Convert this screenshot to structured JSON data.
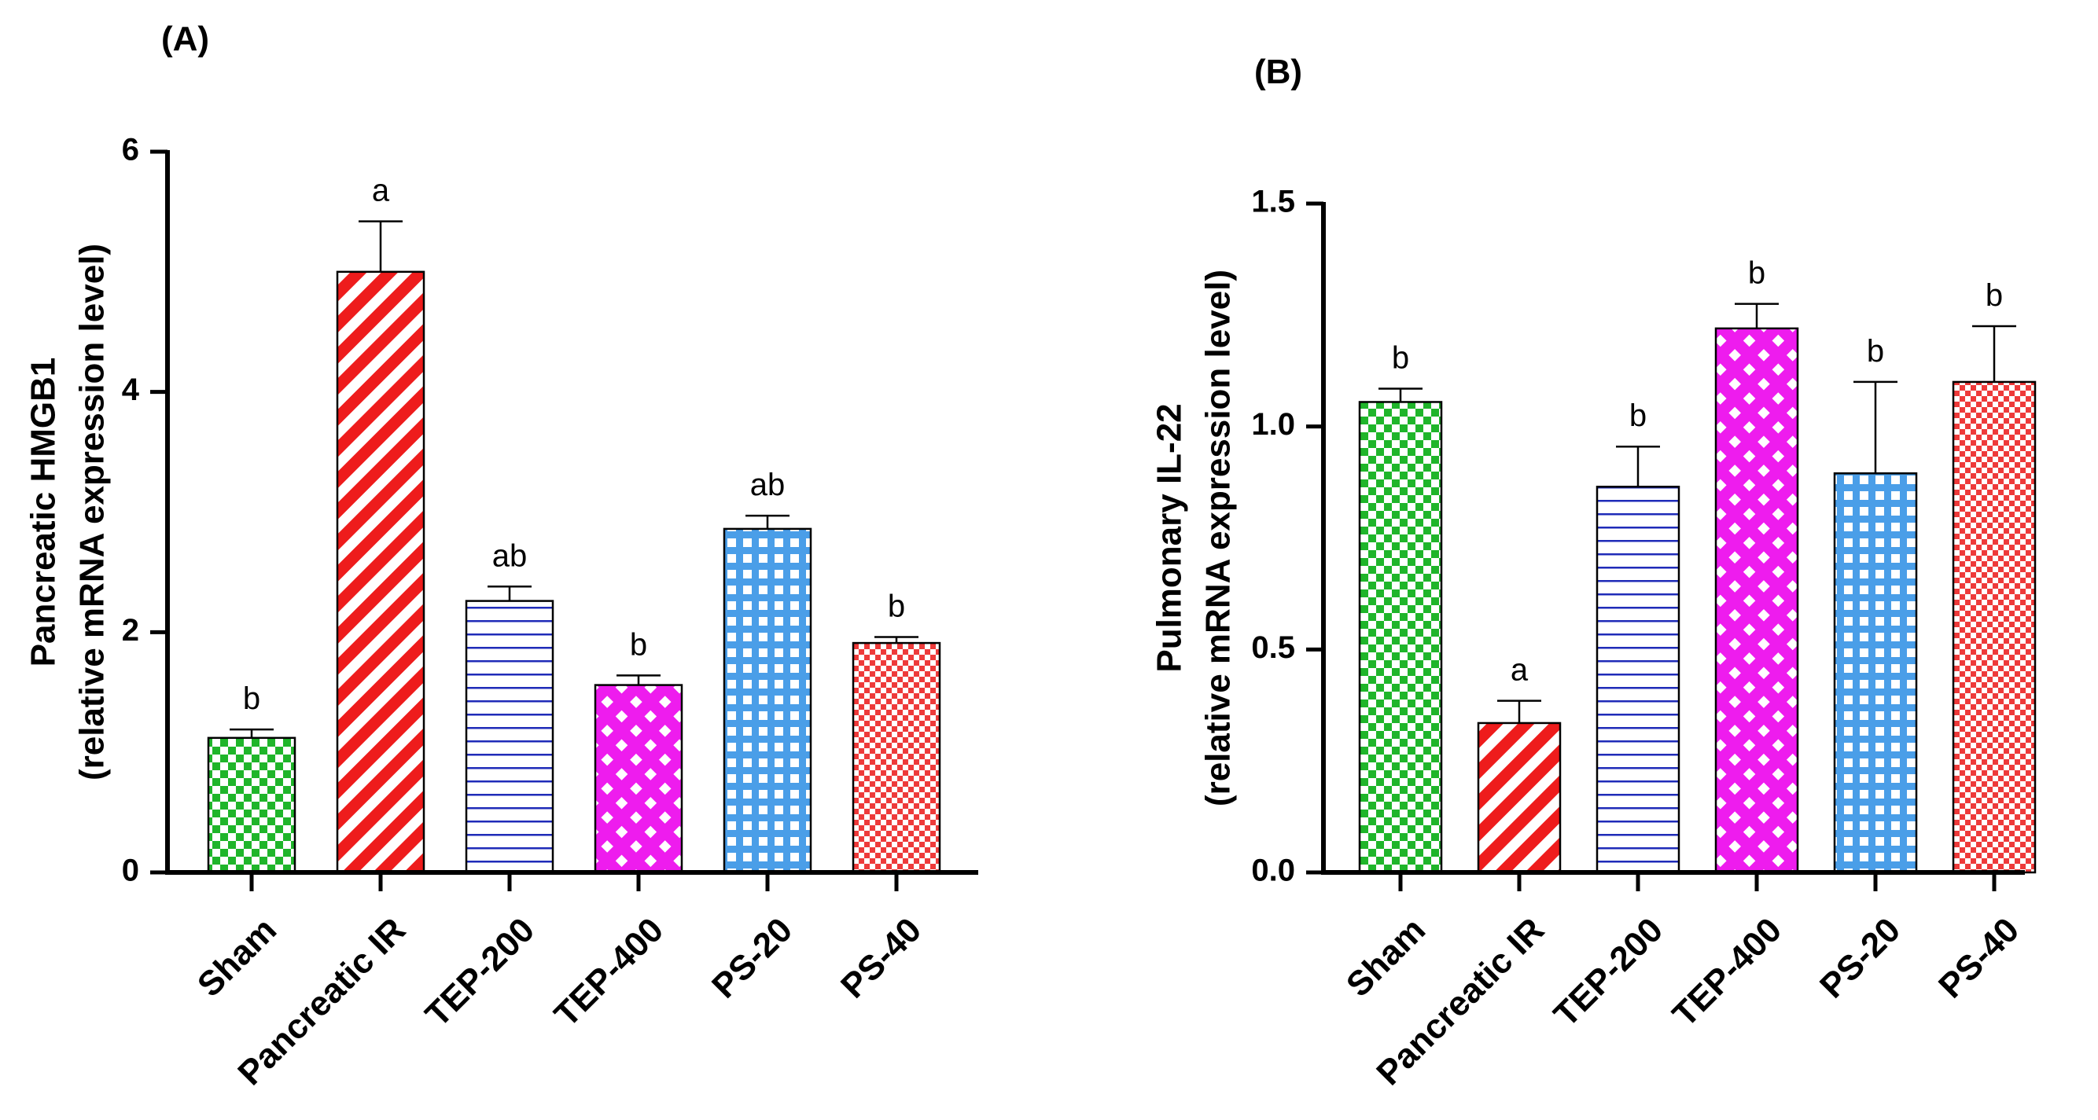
{
  "figure": {
    "panels": [
      "(A)",
      "(B)"
    ]
  },
  "chart_data": [
    {
      "type": "bar",
      "panel_label": "(A)",
      "title": "",
      "ylabel_line1": "Pancreatic HMGB1",
      "ylabel_line2": "(relative mRNA expression level)",
      "xlabel": "",
      "ylim": [
        0,
        6
      ],
      "yticks": [
        0,
        2,
        4,
        6
      ],
      "ytick_labels": [
        "0",
        "2",
        "4",
        "6"
      ],
      "categories": [
        "Sham",
        "Pancreatic IR",
        "TEP-200",
        "TEP-400",
        "PS-20",
        "PS-40"
      ],
      "values": [
        1.12,
        5.0,
        2.26,
        1.56,
        2.86,
        1.91
      ],
      "errors": [
        0.07,
        0.42,
        0.12,
        0.08,
        0.11,
        0.05
      ],
      "significance": [
        "b",
        "a",
        "ab",
        "b",
        "ab",
        "b"
      ],
      "colors": [
        "#1fb52a",
        "#ee1c1c",
        "#1f2bb8",
        "#ee1cee",
        "#4a9ee8",
        "#ee3a3a"
      ],
      "patterns": [
        "checker",
        "diagonal",
        "horizontal",
        "diamond",
        "grid",
        "checker-small"
      ],
      "grid": false,
      "legend": "none"
    },
    {
      "type": "bar",
      "panel_label": "(B)",
      "title": "",
      "ylabel_line1": "Pulmonary IL-22",
      "ylabel_line2": "(relative mRNA expression level)",
      "xlabel": "",
      "ylim": [
        0,
        1.5
      ],
      "yticks": [
        0,
        0.5,
        1.0,
        1.5
      ],
      "ytick_labels": [
        "0.0",
        "0.5",
        "1.0",
        "1.5"
      ],
      "categories": [
        "Sham",
        "Pancreatic IR",
        "TEP-200",
        "TEP-400",
        "PS-20",
        "PS-40"
      ],
      "values": [
        1.055,
        0.335,
        0.865,
        1.22,
        0.895,
        1.1
      ],
      "errors": [
        0.03,
        0.05,
        0.09,
        0.055,
        0.205,
        0.125
      ],
      "significance": [
        "b",
        "a",
        "b",
        "b",
        "b",
        "b"
      ],
      "colors": [
        "#1fb52a",
        "#ee1c1c",
        "#1f2bb8",
        "#ee1cee",
        "#4a9ee8",
        "#ee3a3a"
      ],
      "patterns": [
        "checker",
        "diagonal",
        "horizontal",
        "diamond",
        "grid",
        "checker-small"
      ],
      "grid": false,
      "legend": "none"
    }
  ]
}
